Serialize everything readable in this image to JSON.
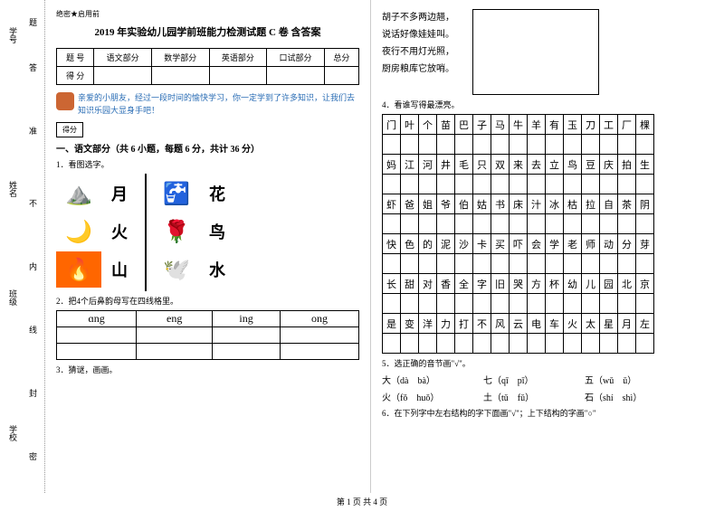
{
  "binding": {
    "l1": "学号",
    "l2": "姓名",
    "l3": "班级",
    "l4": "学校",
    "m1": "题",
    "m2": "答",
    "m3": "准",
    "m4": "不",
    "m5": "内",
    "m6": "线",
    "m7": "封",
    "m8": "密"
  },
  "header": "绝密★启用前",
  "title": "2019 年实验幼儿园学前班能力检测试题 C 卷  含答案",
  "score_table": {
    "r1": [
      "题  号",
      "语文部分",
      "数学部分",
      "英语部分",
      "口试部分",
      "总分"
    ],
    "r2": [
      "得  分",
      "",
      "",
      "",
      "",
      ""
    ]
  },
  "intro": "亲爱的小朋友，经过一段时间的愉快学习，你一定学到了许多知识，让我们去知识乐园大显身手吧！",
  "score_box": "得分",
  "section1": "一、语文部分（共 6 小题，每题 6 分，共计 36 分）",
  "q1": "1．看图选字。",
  "chars_left": [
    "月",
    "火",
    "山"
  ],
  "chars_right": [
    "花",
    "鸟",
    "水"
  ],
  "q2": "2．把4个后鼻韵母写在四线格里。",
  "pinyin_headers": [
    "ɑng",
    "eng",
    "ing",
    "ong"
  ],
  "q3": "3．猜谜，画画。",
  "poem": [
    "胡子不多两边翘，",
    "说话好像娃娃叫。",
    "夜行不用灯光照，",
    "厨房粮库它放哨。"
  ],
  "q4": "4．看谁写得最漂亮。",
  "grid": [
    [
      "门",
      "叶",
      "个",
      "苗",
      "巴",
      "子",
      "马",
      "牛",
      "羊",
      "有",
      "玉",
      "刀",
      "工",
      "厂",
      "棵"
    ],
    [
      "妈",
      "江",
      "河",
      "井",
      "毛",
      "只",
      "双",
      "来",
      "去",
      "立",
      "鸟",
      "豆",
      "庆",
      "拍",
      "生"
    ],
    [
      "虾",
      "爸",
      "姐",
      "爷",
      "伯",
      "姑",
      "书",
      "床",
      "汁",
      "冰",
      "枯",
      "拉",
      "自",
      "茶",
      "阴"
    ],
    [
      "快",
      "色",
      "的",
      "泥",
      "沙",
      "卡",
      "买",
      "吓",
      "会",
      "学",
      "老",
      "师",
      "动",
      "分",
      "芽"
    ],
    [
      "长",
      "甜",
      "对",
      "香",
      "全",
      "字",
      "旧",
      "哭",
      "方",
      "杯",
      "幼",
      "儿",
      "园",
      "北",
      "京"
    ],
    [
      "是",
      "变",
      "洋",
      "力",
      "打",
      "不",
      "风",
      "云",
      "电",
      "车",
      "火",
      "太",
      "星",
      "月",
      "左"
    ]
  ],
  "q5": "5．选正确的音节画\"√\"。",
  "pinyin_rows": [
    [
      {
        "c": "大",
        "a": "dà",
        "b": "bà"
      },
      {
        "c": "七",
        "a": "qī",
        "b": "pī"
      },
      {
        "c": "五",
        "a": "wǔ",
        "b": "ǔ"
      }
    ],
    [
      {
        "c": "火",
        "a": "fǒ",
        "b": "huǒ"
      },
      {
        "c": "土",
        "a": "tǔ",
        "b": "fǔ"
      },
      {
        "c": "石",
        "a": "shí",
        "b": "shì"
      }
    ]
  ],
  "q6": "6．在下列字中左右结构的字下面画\"√\"；上下结构的字画\"○\"",
  "footer": "第 1 页 共 4 页"
}
